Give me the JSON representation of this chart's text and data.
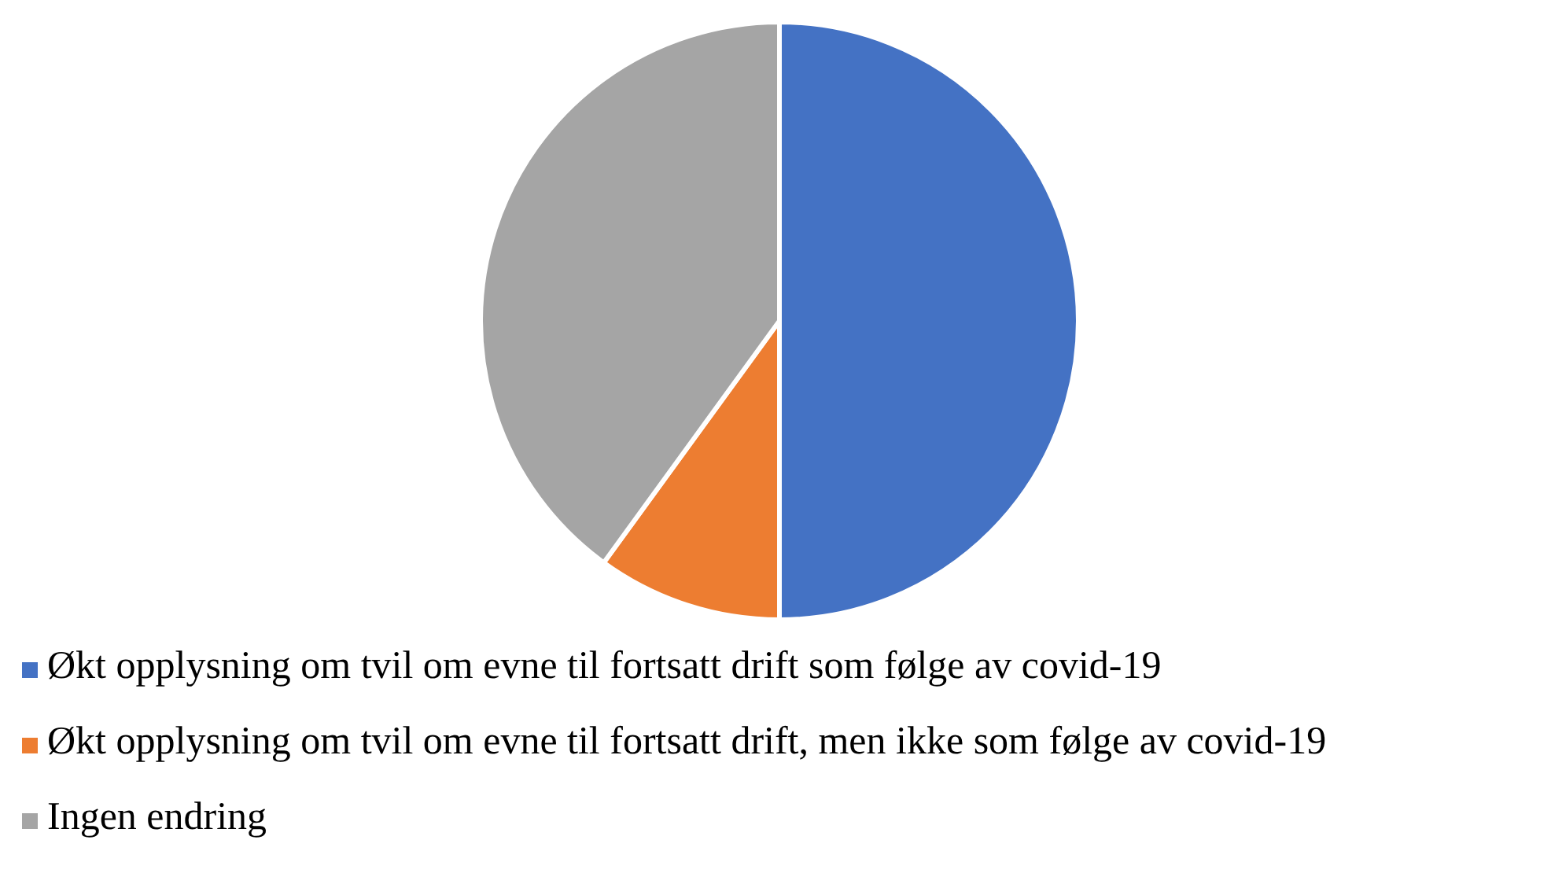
{
  "chart_data": {
    "type": "pie",
    "categories": [
      "Økt opplysning om tvil om evne til fortsatt drift som følge av covid-19",
      "Økt opplysning om tvil om evne til fortsatt drift, men ikke som følge av covid-19",
      "Ingen endring"
    ],
    "values": [
      50,
      10,
      40
    ],
    "colors": [
      "#4472c4",
      "#ed7d31",
      "#a5a5a5"
    ],
    "legend": "bottom left"
  }
}
